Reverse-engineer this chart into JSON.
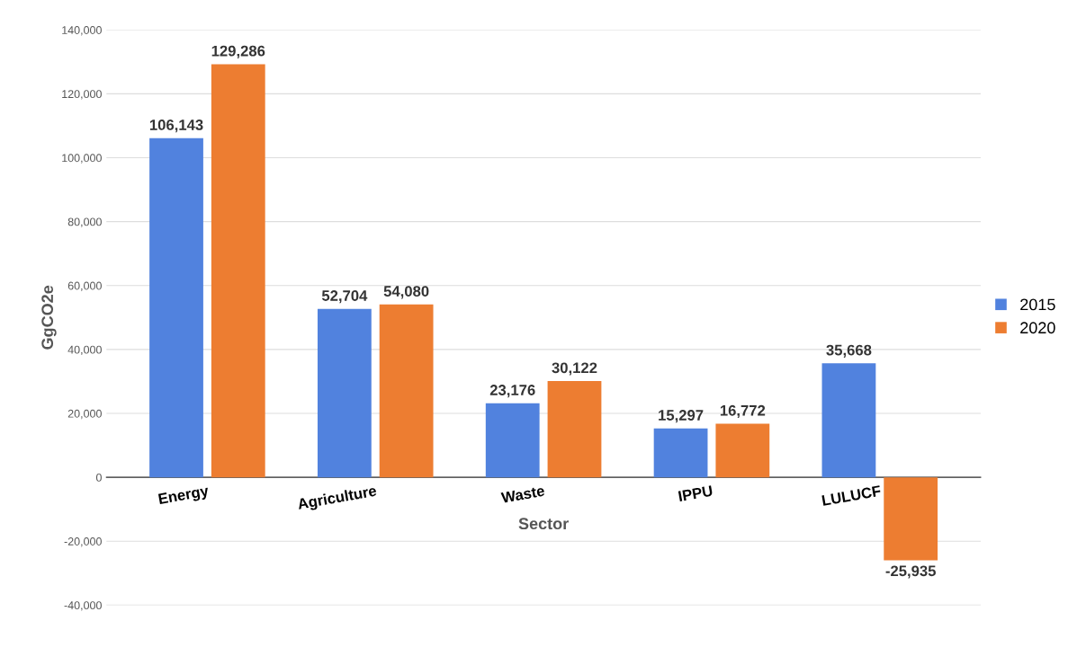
{
  "chart_data": {
    "type": "bar",
    "xlabel": "Sector",
    "ylabel": "GgCO2e",
    "categories": [
      "Energy",
      "Agriculture",
      "Waste",
      "IPPU",
      "LULUCF"
    ],
    "series": [
      {
        "name": "2015",
        "color": "#5182de",
        "values": [
          106143,
          52704,
          23176,
          15297,
          35668
        ],
        "value_labels": [
          "106,143",
          "52,704",
          "23,176",
          "15,297",
          "35,668"
        ]
      },
      {
        "name": "2020",
        "color": "#ed7d31",
        "values": [
          129286,
          54080,
          30122,
          16772,
          -25935
        ],
        "value_labels": [
          "129,286",
          "54,080",
          "30,122",
          "16,772",
          "-25,935"
        ]
      }
    ],
    "ylim": [
      -40000,
      140000
    ],
    "yticks": [
      {
        "value": -40000,
        "label": "-40,000"
      },
      {
        "value": -20000,
        "label": "-20,000"
      },
      0,
      {
        "value": 20000,
        "label": "20,000"
      },
      {
        "value": 40000,
        "label": "40,000"
      },
      {
        "value": 60000,
        "label": "60,000"
      },
      {
        "value": 80000,
        "label": "80,000"
      },
      {
        "value": 100000,
        "label": "100,000"
      },
      {
        "value": 120000,
        "label": "120,000"
      },
      {
        "value": 140000,
        "label": "140,000"
      }
    ],
    "grid": "y",
    "legend": "right"
  }
}
